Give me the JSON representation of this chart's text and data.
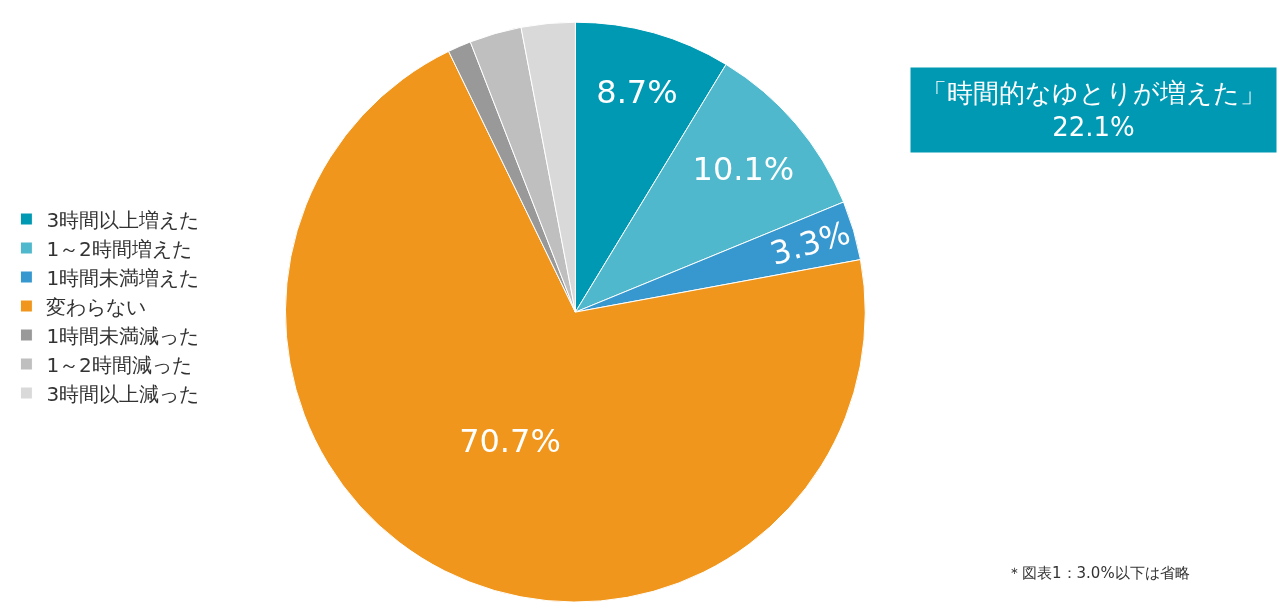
{
  "chart_data": {
    "type": "pie",
    "categories": [
      "3時間以上増えた",
      "1～2時間増えた",
      "1時間未満増えた",
      "変わらない",
      "1時間未満減った",
      "1～2時間減った",
      "3時間以上減った"
    ],
    "values": [
      8.7,
      10.1,
      3.3,
      70.7,
      1.3,
      2.9,
      3.0
    ],
    "value_labels": [
      "8.7%",
      "10.1%",
      "3.3%",
      "70.7%",
      null,
      null,
      null
    ],
    "colors": [
      "#0099b3",
      "#4fb8cc",
      "#3797cf",
      "#f0961c",
      "#999999",
      "#bfbfbf",
      "#d9d9d9"
    ],
    "legend": "left",
    "annotations": [
      "「時間的なゆとりが増えた」\n22.1%",
      "＊図表1：3.0%以下は省略"
    ]
  }
}
